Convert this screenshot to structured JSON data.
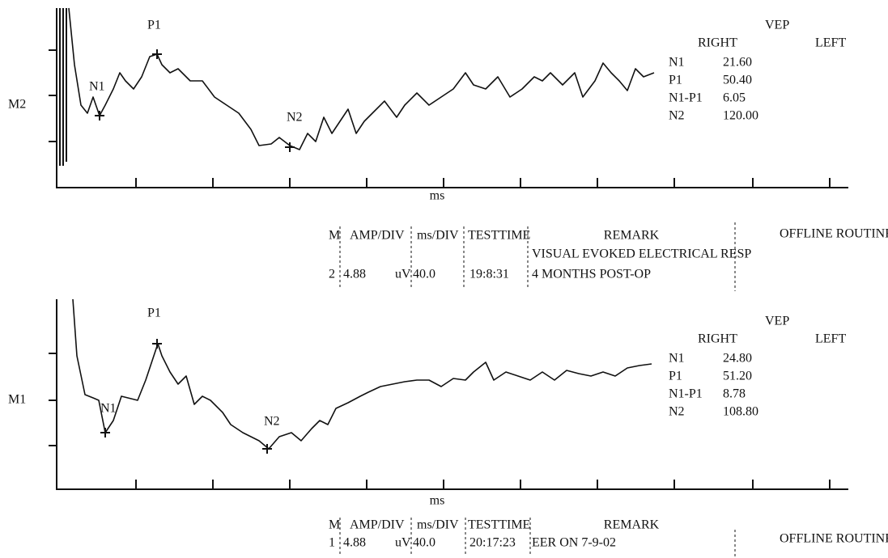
{
  "panels": [
    {
      "channel": "M2",
      "axis_label": "ms",
      "peaks": [
        "N1",
        "P1",
        "N2"
      ],
      "results": {
        "title": "VEP",
        "right": "RIGHT",
        "left": "LEFT",
        "rows": [
          [
            "N1",
            "21.60"
          ],
          [
            "P1",
            "50.40"
          ],
          [
            "N1-P1",
            "6.05"
          ],
          [
            "N2",
            "120.00"
          ]
        ]
      },
      "info": {
        "headers": [
          "M",
          "AMP/DIV",
          "ms/DIV",
          "TESTTIME",
          "REMARK"
        ],
        "values": [
          "2",
          "4.88",
          "uV",
          "40.0",
          "19:8:31"
        ],
        "remark_lines": [
          "VISUAL EVOKED ELECTRICAL RESP",
          "4 MONTHS POST-OP"
        ],
        "routine": "OFFLINE ROUTINE"
      }
    },
    {
      "channel": "M1",
      "axis_label": "ms",
      "peaks": [
        "N1",
        "P1",
        "N2"
      ],
      "results": {
        "title": "VEP",
        "right": "RIGHT",
        "left": "LEFT",
        "rows": [
          [
            "N1",
            "24.80"
          ],
          [
            "P1",
            "51.20"
          ],
          [
            "N1-P1",
            "8.78"
          ],
          [
            "N2",
            "108.80"
          ]
        ]
      },
      "info": {
        "headers": [
          "M",
          "AMP/DIV",
          "ms/DIV",
          "TESTTIME",
          "REMARK"
        ],
        "values": [
          "1",
          "4.88",
          "uV",
          "40.0",
          "20:17:23"
        ],
        "remark_lines": [
          "EER ON 7-9-02"
        ],
        "routine": "OFFLINE ROUTINE"
      }
    }
  ]
}
